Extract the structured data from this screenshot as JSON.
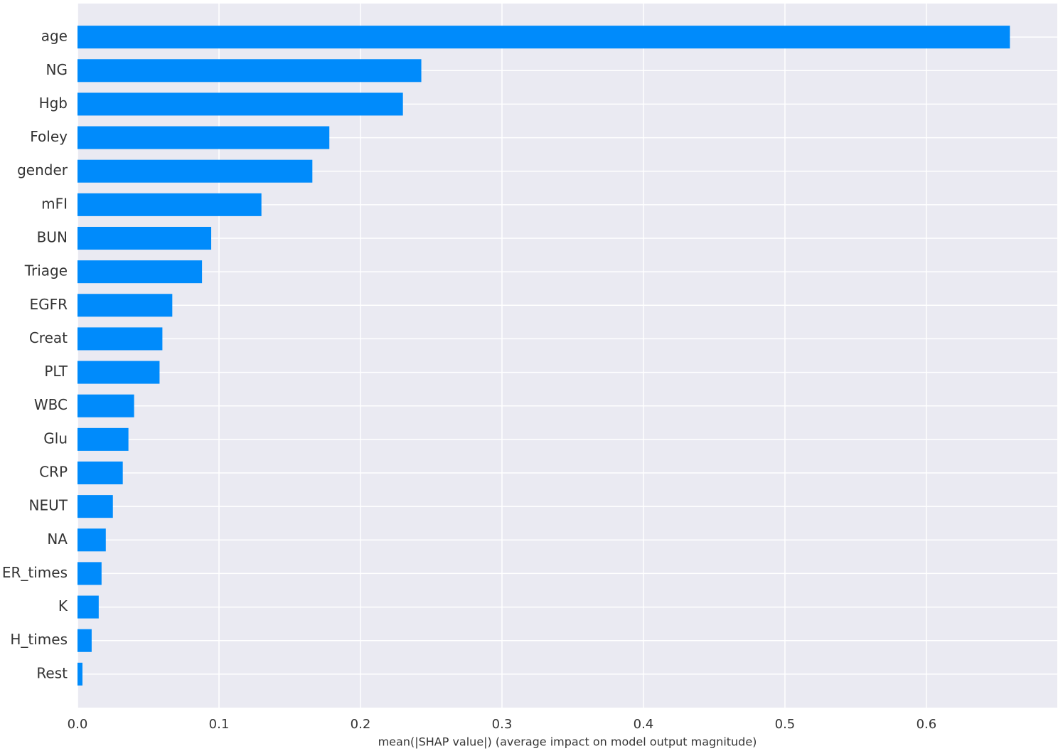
{
  "chart_data": {
    "type": "bar",
    "orientation": "horizontal",
    "xlabel": "mean(|SHAP value|) (average impact on model output magnitude)",
    "categories": [
      "age",
      "NG",
      "Hgb",
      "Foley",
      "gender",
      "mFI",
      "BUN",
      "Triage",
      "EGFR",
      "Creat",
      "PLT",
      "WBC",
      "Glu",
      "CRP",
      "NEUT",
      "NA",
      "ER_times",
      "K",
      "H_times",
      "Rest"
    ],
    "values": [
      0.659,
      0.243,
      0.23,
      0.178,
      0.166,
      0.13,
      0.0945,
      0.088,
      0.067,
      0.06,
      0.058,
      0.04,
      0.036,
      0.032,
      0.025,
      0.02,
      0.017,
      0.015,
      0.01,
      0.0035
    ],
    "color": "#008bfb",
    "xlim": [
      0,
      0.6925
    ],
    "xticks": [
      {
        "value": 0,
        "label": "0.0"
      },
      0.1,
      0.2,
      0.3,
      0.4,
      0.5,
      0.6
    ],
    "grid": true
  }
}
